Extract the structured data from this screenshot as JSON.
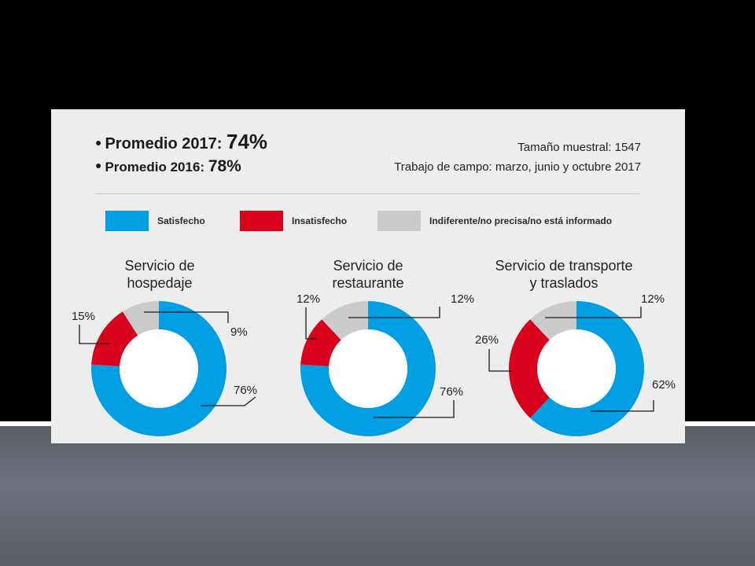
{
  "header": {
    "promedio_2017_label": "Promedio 2017:",
    "promedio_2017_value": "74%",
    "promedio_2016_label": "Promedio 2016:",
    "promedio_2016_value": "78%",
    "sample_size": "Tamaño muestral: 1547",
    "fieldwork": "Trabajo de campo: marzo, junio y octubre 2017"
  },
  "legend": [
    {
      "label": "Satisfecho",
      "color": "#009fe3"
    },
    {
      "label": "Insatisfecho",
      "color": "#d9001c"
    },
    {
      "label": "Indiferente/no precisa/no está informado",
      "color": "#cbcbcb"
    }
  ],
  "chart_data": [
    {
      "type": "pie",
      "title": "Servicio de\nhospedaje",
      "categories": [
        "Satisfecho",
        "Insatisfecho",
        "Indiferente/no precisa/no está informado"
      ],
      "values": [
        76,
        15,
        9
      ],
      "labels": [
        "76%",
        "15%",
        "9%"
      ],
      "colors": [
        "#009fe3",
        "#d9001c",
        "#cbcbcb"
      ]
    },
    {
      "type": "pie",
      "title": "Servicio de\nrestaurante",
      "categories": [
        "Satisfecho",
        "Insatisfecho",
        "Indiferente/no precisa/no está informado"
      ],
      "values": [
        76,
        12,
        12
      ],
      "labels": [
        "76%",
        "12%",
        "12%"
      ],
      "colors": [
        "#009fe3",
        "#d9001c",
        "#cbcbcb"
      ]
    },
    {
      "type": "pie",
      "title": "Servicio de transporte\ny traslados",
      "categories": [
        "Satisfecho",
        "Insatisfecho",
        "Indiferente/no precisa/no está informado"
      ],
      "values": [
        62,
        26,
        12
      ],
      "labels": [
        "62%",
        "26%",
        "12%"
      ],
      "colors": [
        "#009fe3",
        "#d9001c",
        "#cbcbcb"
      ]
    }
  ]
}
